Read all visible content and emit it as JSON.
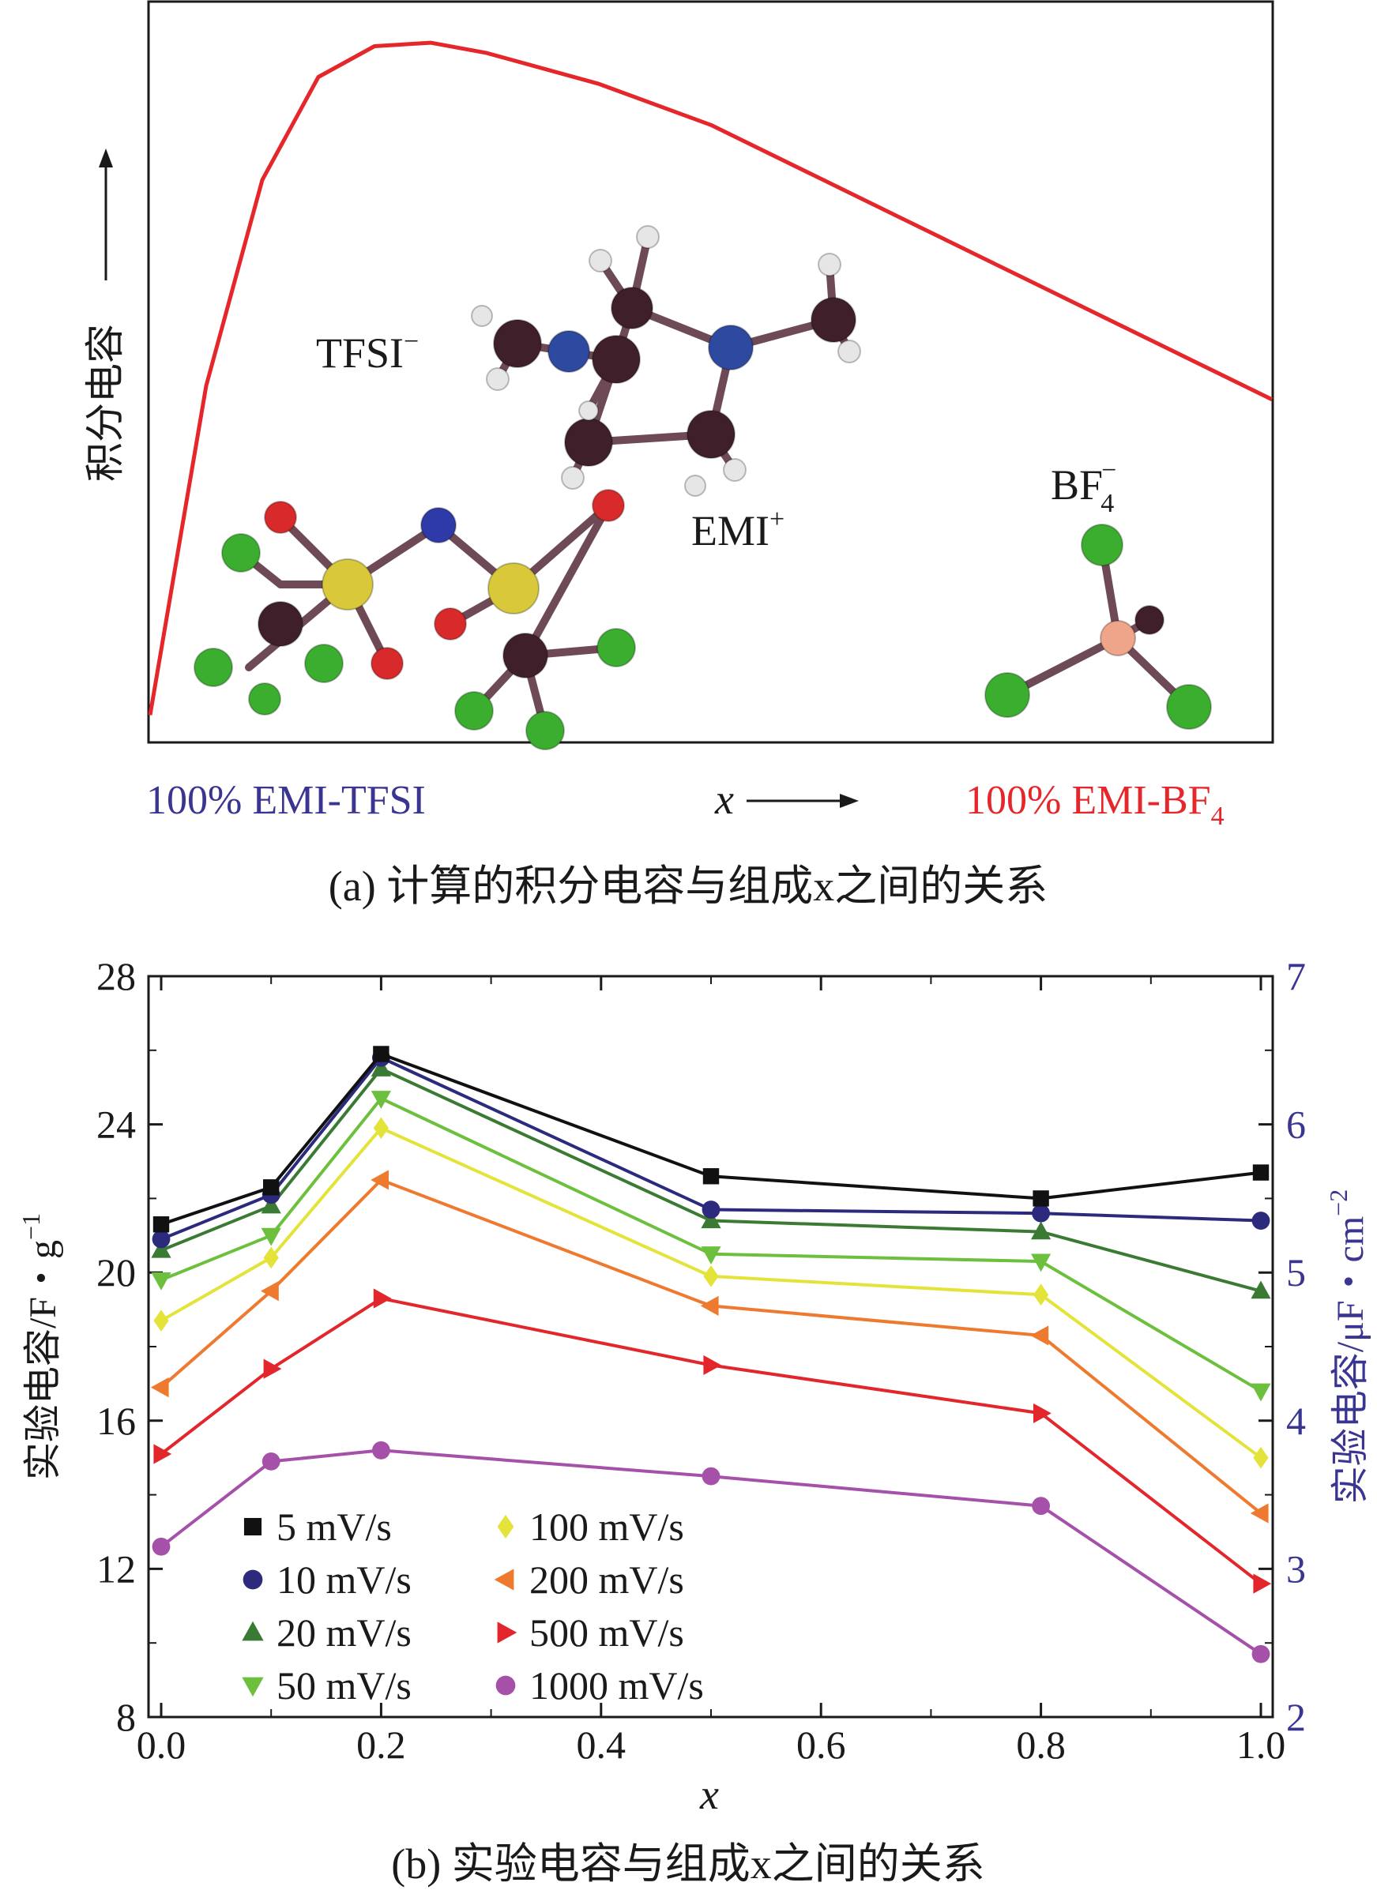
{
  "panel_a": {
    "caption": "(a) 计算的积分电容与组成x之间的关系",
    "y_axis_label": "积分电容",
    "x_axis_label": "x",
    "left_label": "100% EMI-TFSI",
    "right_label": "100% EMI-BF4",
    "labels": {
      "tfsi": "TFSI",
      "emi": "EMI",
      "bf4": "BF4"
    },
    "colors": {
      "curve": "#e5272c",
      "left_label": "#3a3590",
      "right_label": "#e5272c"
    }
  },
  "panel_b": {
    "caption": "(b) 实验电容与组成x之间的关系",
    "colors": {
      "right_axis": "#3a3590"
    }
  },
  "chart_data": [
    {
      "type": "line",
      "x": [
        0,
        0.05,
        0.1,
        0.15,
        0.2,
        0.25,
        0.3,
        0.4,
        0.5,
        0.6,
        0.7,
        0.8,
        0.9,
        1.0
      ],
      "series": [
        {
          "values": [
            0.02,
            0.5,
            0.8,
            0.95,
            0.995,
            1.0,
            0.985,
            0.94,
            0.88,
            0.8,
            0.72,
            0.64,
            0.56,
            0.48
          ]
        }
      ],
      "xlabel": "x",
      "ylabel": "积分电容",
      "xlim": [
        0,
        1
      ],
      "ylim": [
        -0.02,
        1.06
      ],
      "grid": false
    },
    {
      "type": "line",
      "x": [
        0.0,
        0.1,
        0.2,
        0.5,
        0.8,
        1.0
      ],
      "xlabel": "x",
      "ylabel": "实验电容/F・g",
      "ylabel_exp": "−1",
      "y2label": "实验电容/μF・cm",
      "y2label_exp": "−2",
      "xlim": [
        0.0,
        1.0
      ],
      "ylim": [
        8,
        28
      ],
      "y2lim": [
        2,
        7
      ],
      "xticks": [
        "0.0",
        "0.2",
        "0.4",
        "0.6",
        "0.8",
        "1.0"
      ],
      "yticks": [
        "8",
        "12",
        "16",
        "20",
        "24",
        "28"
      ],
      "y2ticks": [
        "2",
        "3",
        "4",
        "5",
        "6",
        "7"
      ],
      "grid": false,
      "legend_position": "bottom-left",
      "series": [
        {
          "name": "5 mV/s",
          "marker": "square",
          "color": "#111111",
          "values": [
            21.3,
            22.3,
            25.9,
            22.6,
            22.0,
            22.7
          ]
        },
        {
          "name": "10 mV/s",
          "marker": "circle",
          "color": "#2b2a7c",
          "values": [
            20.9,
            22.1,
            25.8,
            21.7,
            21.6,
            21.4
          ]
        },
        {
          "name": "20 mV/s",
          "marker": "triangle-up",
          "color": "#3a7a32",
          "values": [
            20.6,
            21.8,
            25.5,
            21.4,
            21.1,
            19.5
          ]
        },
        {
          "name": "50 mV/s",
          "marker": "triangle-down",
          "color": "#6dc03e",
          "values": [
            19.8,
            21.0,
            24.7,
            20.5,
            20.3,
            16.8
          ]
        },
        {
          "name": "100 mV/s",
          "marker": "diamond",
          "color": "#e3e33a",
          "values": [
            18.7,
            20.4,
            23.9,
            19.9,
            19.4,
            15.0
          ]
        },
        {
          "name": "200 mV/s",
          "marker": "triangle-left",
          "color": "#ee7a2f",
          "values": [
            16.9,
            19.5,
            22.5,
            19.1,
            18.3,
            13.5
          ]
        },
        {
          "name": "500 mV/s",
          "marker": "triangle-right",
          "color": "#e3262c",
          "values": [
            15.1,
            17.4,
            19.3,
            17.5,
            16.2,
            11.6
          ]
        },
        {
          "name": "1000 mV/s",
          "marker": "circle",
          "color": "#a550a9",
          "values": [
            12.6,
            14.9,
            15.2,
            14.5,
            13.7,
            9.7
          ]
        }
      ]
    }
  ]
}
